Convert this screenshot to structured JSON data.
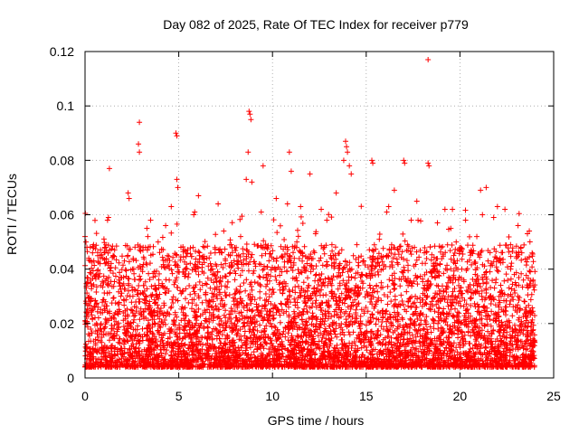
{
  "chart_data": {
    "type": "scatter",
    "title": "Day 082 of 2025, Rate Of TEC Index for receiver p779",
    "xlabel": "GPS time / hours",
    "ylabel": "ROTI / TECUs",
    "xlim": [
      0,
      25
    ],
    "ylim": [
      0,
      0.12
    ],
    "xticks": [
      "0",
      "5",
      "10",
      "15",
      "20",
      "25"
    ],
    "yticks": [
      "0",
      "0.02",
      "0.04",
      "0.06",
      "0.08",
      "0.1",
      "0.12"
    ],
    "grid": true,
    "marker": "plus",
    "color": "#ff0000",
    "x_extent": [
      0,
      24
    ],
    "series": [
      {
        "x": [
          18.3,
          8.75,
          8.8,
          8.85,
          2.9,
          4.85,
          4.9,
          2.85,
          2.9,
          8.7,
          13.9,
          13.95,
          14.0,
          15.3,
          15.35,
          17.0,
          17.05,
          18.3,
          18.35,
          1.3,
          9.5,
          10.9,
          11.0,
          13.8,
          14.1,
          14.2,
          8.6,
          8.9,
          12.0,
          4.9,
          4.95,
          6.05,
          2.3,
          2.35,
          7.1,
          10.2,
          11.5,
          13.4,
          16.5,
          17.7,
          19.2,
          21.1,
          21.4,
          22.0,
          0.0,
          0.05,
          0.1,
          1.2,
          1.25,
          3.3,
          3.35,
          3.5,
          4.3,
          4.6,
          5.8,
          5.85,
          7.4,
          9.4,
          10.8,
          12.6,
          12.9,
          16.1,
          16.2,
          17.4,
          18.8,
          19.6,
          20.3,
          21.2,
          21.8,
          22.4,
          23.1,
          23.6,
          23.7,
          0.2,
          0.4,
          0.8,
          1.5,
          2.1,
          3.1,
          3.9,
          5.3,
          6.5,
          7.3,
          7.8,
          8.3,
          9.7,
          11.3,
          12.3,
          13.1,
          14.5,
          15.7,
          16.7,
          17.2,
          18.1,
          19.0,
          19.8,
          20.6,
          20.9,
          22.7,
          23.3,
          0.6,
          1.8,
          2.6,
          3.7,
          4.4,
          5.5,
          6.8,
          8.1,
          9.1,
          10.5,
          11.8,
          13.6,
          14.8,
          15.9,
          16.9,
          18.6,
          19.4,
          20.1,
          21.6,
          22.9,
          23.9
        ],
        "y": [
          0.117,
          0.098,
          0.097,
          0.095,
          0.094,
          0.09,
          0.089,
          0.086,
          0.083,
          0.083,
          0.087,
          0.085,
          0.083,
          0.08,
          0.079,
          0.08,
          0.079,
          0.079,
          0.078,
          0.077,
          0.078,
          0.083,
          0.076,
          0.08,
          0.078,
          0.075,
          0.073,
          0.072,
          0.075,
          0.073,
          0.07,
          0.067,
          0.068,
          0.066,
          0.064,
          0.066,
          0.063,
          0.068,
          0.069,
          0.065,
          0.062,
          0.069,
          0.07,
          0.063,
          0.052,
          0.05,
          0.048,
          0.058,
          0.059,
          0.055,
          0.052,
          0.058,
          0.056,
          0.063,
          0.06,
          0.061,
          0.054,
          0.061,
          0.064,
          0.062,
          0.058,
          0.061,
          0.063,
          0.058,
          0.057,
          0.062,
          0.058,
          0.06,
          0.059,
          0.062,
          0.056,
          0.053,
          0.054,
          0.044,
          0.046,
          0.042,
          0.045,
          0.043,
          0.048,
          0.05,
          0.047,
          0.044,
          0.046,
          0.049,
          0.052,
          0.048,
          0.05,
          0.053,
          0.045,
          0.049,
          0.051,
          0.047,
          0.049,
          0.046,
          0.048,
          0.05,
          0.047,
          0.052,
          0.049,
          0.046,
          0.038,
          0.036,
          0.04,
          0.039,
          0.041,
          0.037,
          0.04,
          0.042,
          0.041,
          0.039,
          0.04,
          0.042,
          0.038,
          0.04,
          0.039,
          0.041,
          0.037,
          0.04,
          0.039,
          0.038,
          0.036
        ]
      }
    ]
  }
}
